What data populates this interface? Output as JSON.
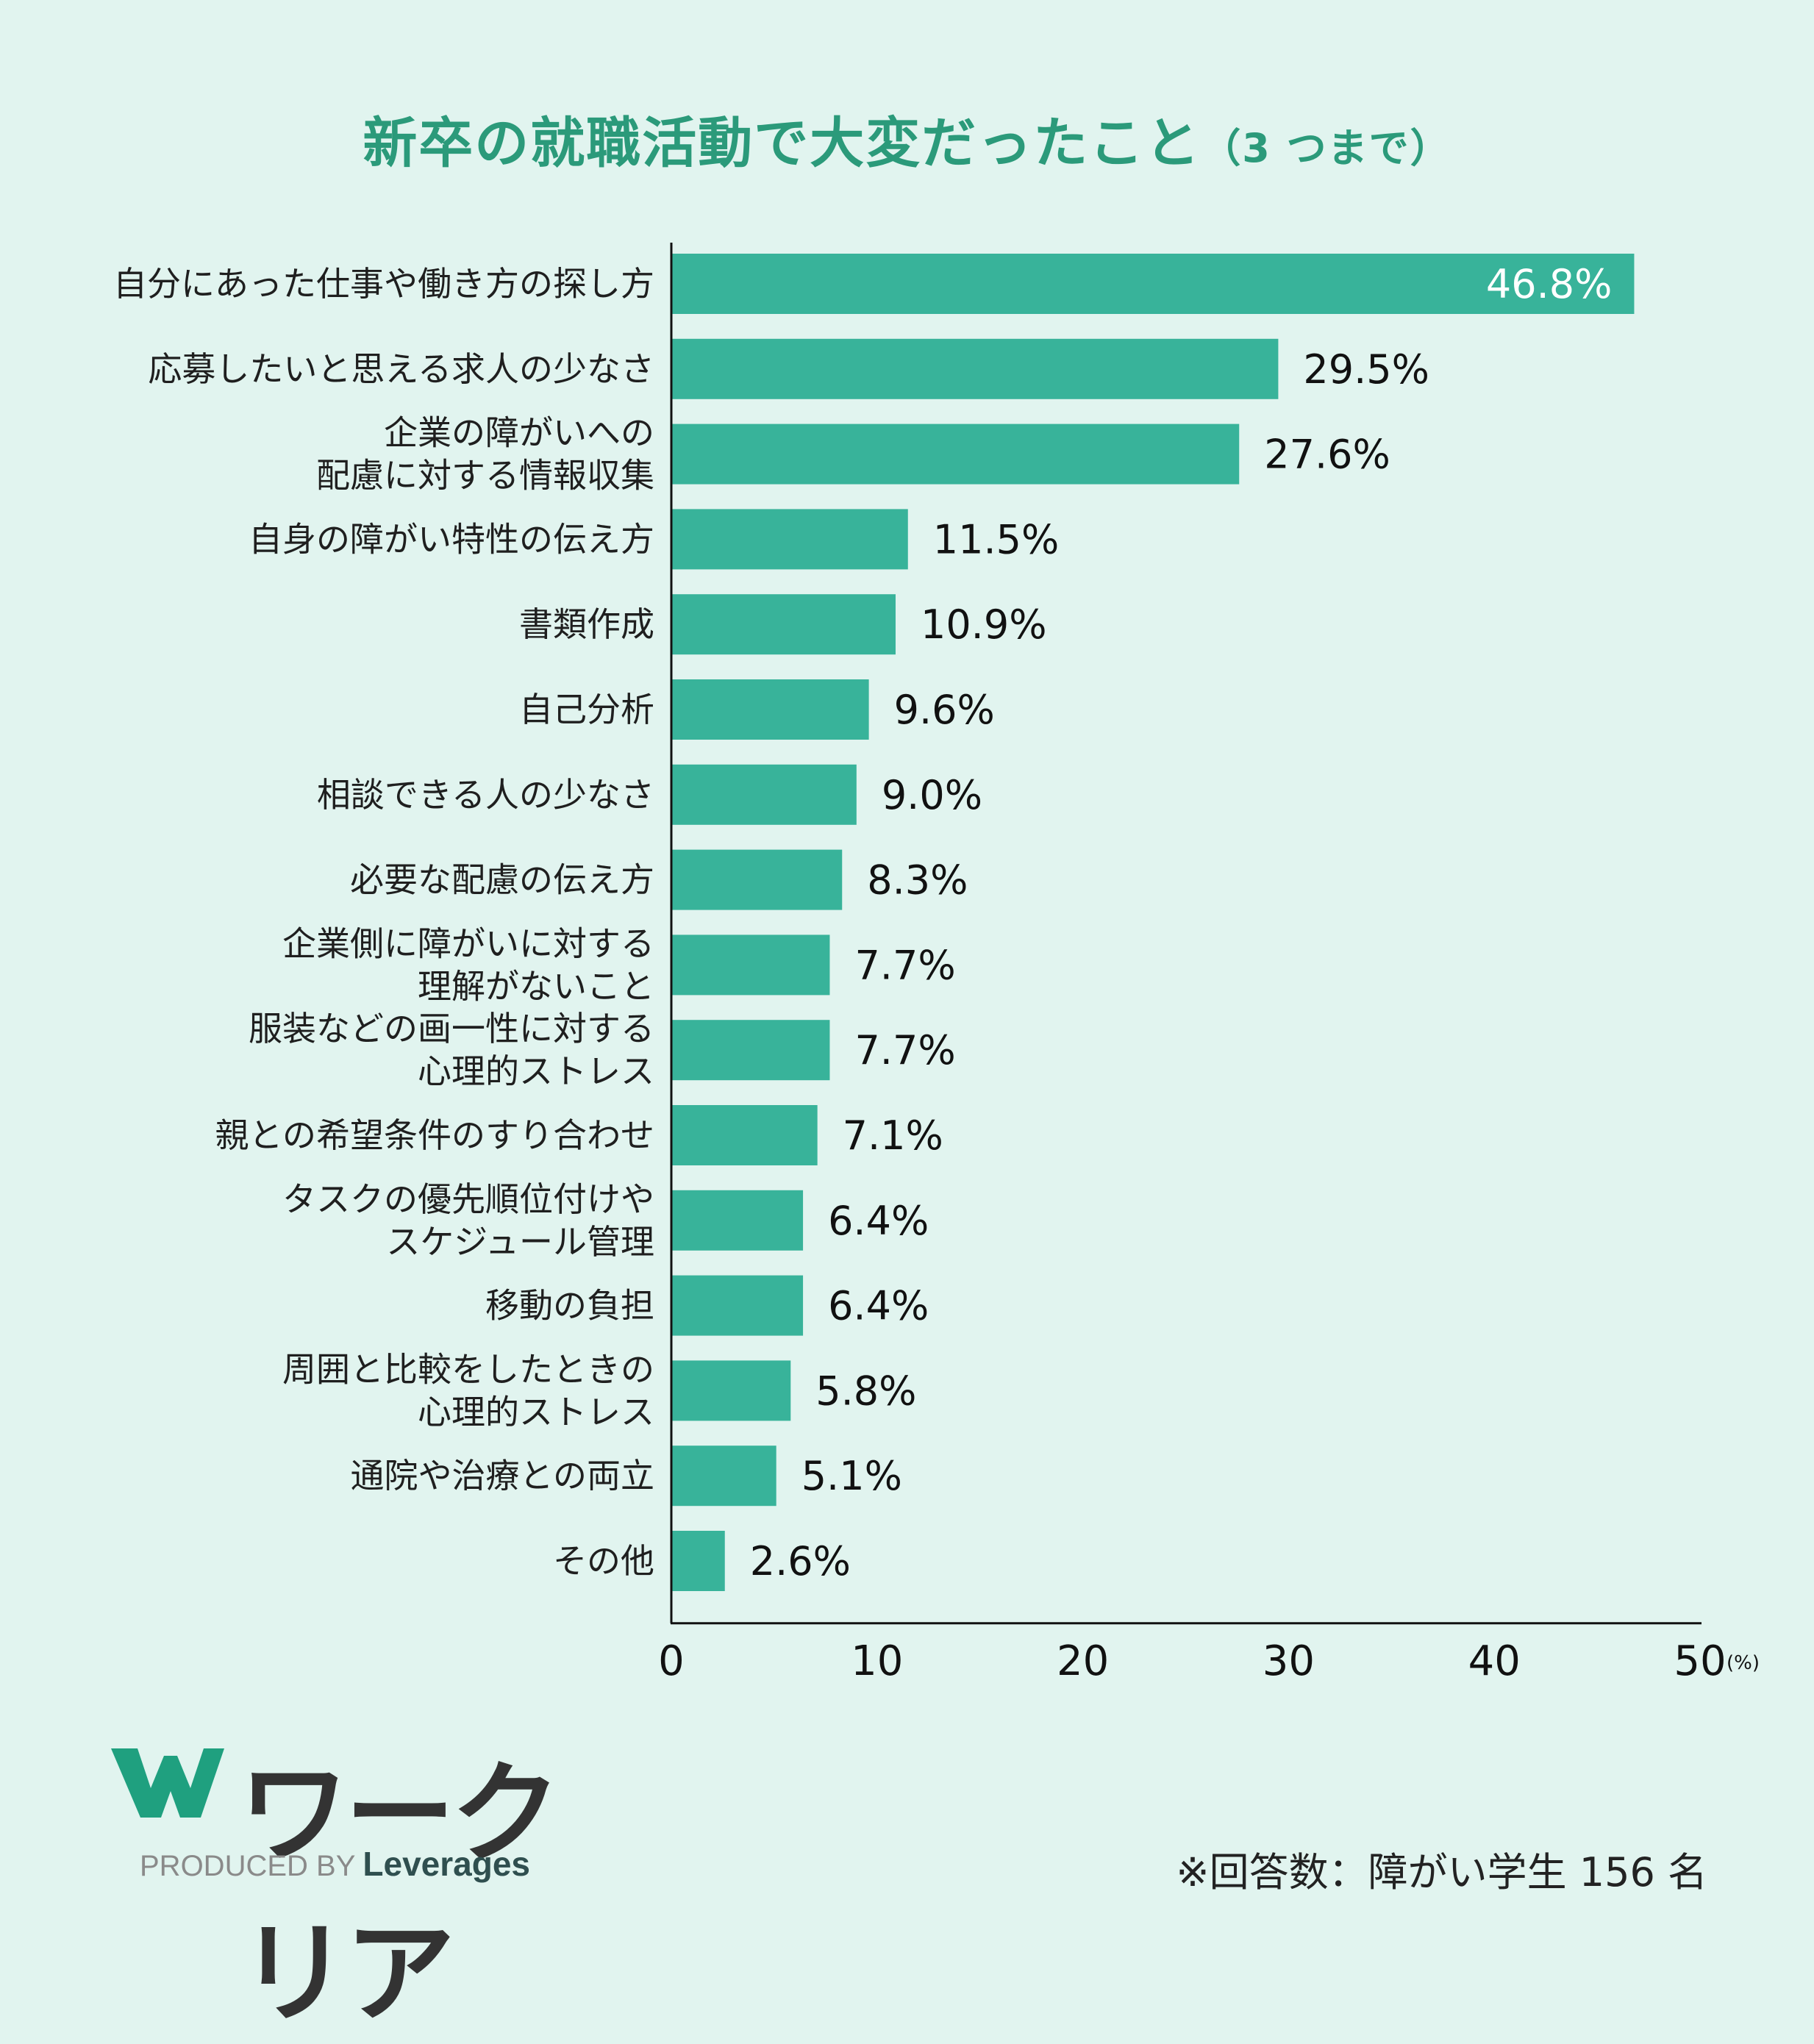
{
  "title": {
    "main": "新卒の就職活動で大変だったこと",
    "sub": "（3 つまで）"
  },
  "chart_data": {
    "type": "bar",
    "orientation": "horizontal",
    "title": "新卒の就職活動で大変だったこと（3 つまで）",
    "categories": [
      [
        "自分にあった仕事や働き方の探し方"
      ],
      [
        "応募したいと思える求人の少なさ"
      ],
      [
        "企業の障がいへの",
        "配慮に対する情報収集"
      ],
      [
        "自身の障がい特性の伝え方"
      ],
      [
        "書類作成"
      ],
      [
        "自己分析"
      ],
      [
        "相談できる人の少なさ"
      ],
      [
        "必要な配慮の伝え方"
      ],
      [
        "企業側に障がいに対する",
        "理解がないこと"
      ],
      [
        "服装などの画一性に対する",
        "心理的ストレス"
      ],
      [
        "親との希望条件のすり合わせ"
      ],
      [
        "タスクの優先順位付けや",
        "スケジュール管理"
      ],
      [
        "移動の負担"
      ],
      [
        "周囲と比較をしたときの",
        "心理的ストレス"
      ],
      [
        "通院や治療との両立"
      ],
      [
        "その他"
      ]
    ],
    "values": [
      46.8,
      29.5,
      27.6,
      11.5,
      10.9,
      9.6,
      9.0,
      8.3,
      7.7,
      7.7,
      7.1,
      6.4,
      6.4,
      5.8,
      5.1,
      2.6
    ],
    "value_labels": [
      "46.8",
      "29.5",
      "27.6",
      "11.5",
      "10.9",
      "9.6",
      "9.0",
      "8.3",
      "7.7",
      "7.7",
      "7.1",
      "6.4",
      "6.4",
      "5.8",
      "5.1",
      "2.6"
    ],
    "value_suffix": "%",
    "xlim": [
      0,
      50
    ],
    "xticks": [
      "0",
      "10",
      "20",
      "30",
      "40",
      "50"
    ],
    "xunit": "(%)",
    "bar_color": "#38b39a",
    "grid": false
  },
  "logo": {
    "name": "ワークリア",
    "produced_by": "PRODUCED BY",
    "company": "Leverages"
  },
  "footnote": "※回答数：障がい学生 156 名",
  "colors": {
    "background": "#e1f4ef",
    "title": "#2b9a7a",
    "bar": "#38b39a",
    "logo_mark": "#1fa07f"
  }
}
